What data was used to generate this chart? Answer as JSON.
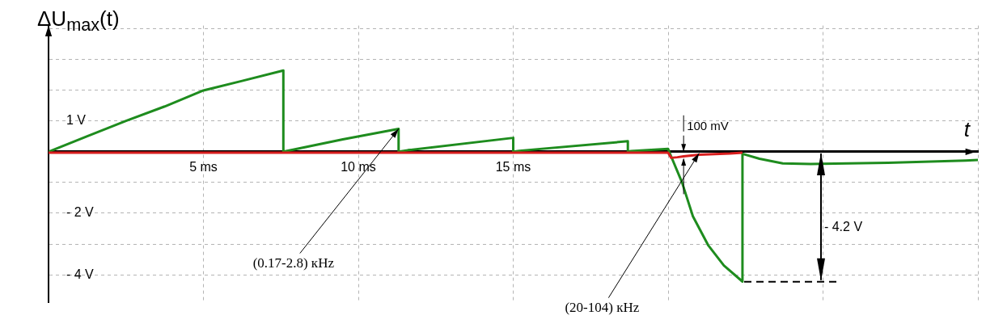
{
  "chart_data": {
    "type": "line",
    "ylabel": "ΔU$_{max}$(t)",
    "xlabel": "t",
    "xlim": [
      0,
      30
    ],
    "xticks": [
      {
        "value": 0,
        "label": null
      },
      {
        "value": 5,
        "label": "5 ms"
      },
      {
        "value": 10,
        "label": "10 ms"
      },
      {
        "value": 15,
        "label": "15 ms"
      },
      {
        "value": 20,
        "label": null
      },
      {
        "value": 25,
        "label": null
      },
      {
        "value": 30,
        "label": null
      }
    ],
    "ylim": [
      -4.9,
      4.1
    ],
    "yticks": [
      {
        "value": -4,
        "label": "- 4 V"
      },
      {
        "value": -3,
        "label": null
      },
      {
        "value": -2,
        "label": "- 2 V"
      },
      {
        "value": -1,
        "label": null
      },
      {
        "value": 0,
        "label": null
      },
      {
        "value": 1,
        "label": "1 V"
      },
      {
        "value": 2,
        "label": null
      },
      {
        "value": 3,
        "label": null
      },
      {
        "value": 4,
        "label": null
      }
    ],
    "grid": true,
    "legend": false,
    "marker": "none",
    "series": [
      {
        "color": "#d81e1e",
        "x": [
          0,
          5,
          10,
          15,
          20,
          20.1,
          20.3,
          20.5,
          21,
          21.5,
          22,
          22.4
        ],
        "values": [
          -0.03,
          -0.03,
          -0.03,
          -0.03,
          -0.03,
          -0.2,
          -0.18,
          -0.15,
          -0.1,
          -0.08,
          -0.06,
          -0.03
        ]
      },
      {
        "color": "#1e8c1e",
        "x": [
          0,
          1.25,
          2.5,
          3.75,
          5,
          6.25,
          7.58,
          7.58,
          9.5,
          11.3,
          11.3,
          11.6,
          15.0,
          15.0,
          15.2,
          18.7,
          18.7,
          18.8,
          20.0,
          20.08,
          20.45,
          20.8,
          21.3,
          21.8,
          22.4,
          22.4,
          22.95,
          23.7,
          24.6,
          27.1,
          29.6,
          30
        ],
        "values": [
          0,
          0.5,
          1.0,
          1.47,
          1.99,
          2.3,
          2.64,
          0,
          0.4,
          0.74,
          0,
          0.05,
          0.45,
          0,
          0.03,
          0.34,
          0,
          0.02,
          0.09,
          -0.11,
          -1.0,
          -2.1,
          -3.05,
          -3.7,
          -4.22,
          -0.07,
          -0.23,
          -0.38,
          -0.4,
          -0.36,
          -0.29,
          -0.27
        ]
      }
    ],
    "annotations": [
      {
        "text": "(0.17-2.8) кHz",
        "x": 11.3,
        "y": 0.74
      },
      {
        "text": "(20-104) кHz",
        "x": 21,
        "y": -0.05
      },
      {
        "text": "100 mV",
        "x": 20.5,
        "y": -0.1
      },
      "- 4.2 V"
    ]
  }
}
